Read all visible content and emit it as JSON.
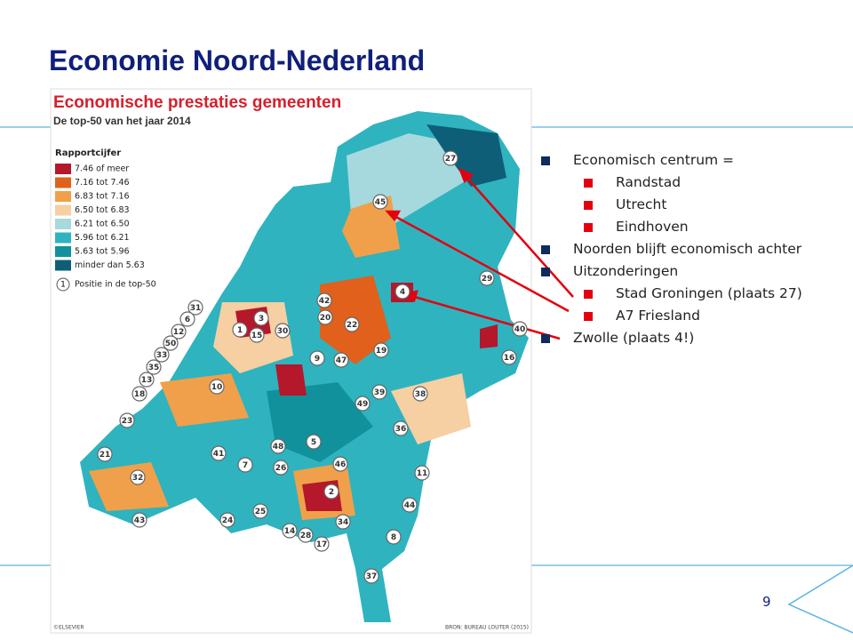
{
  "slide": {
    "title": "Economie Noord-Nederland",
    "bullets": [
      {
        "text": "Economisch centrum =",
        "level": 1
      },
      {
        "text": "Randstad",
        "level": 2
      },
      {
        "text": "Utrecht",
        "level": 2
      },
      {
        "text": "Eindhoven",
        "level": 2
      },
      {
        "text": "Noorden blijft economisch achter",
        "level": 1
      },
      {
        "text": "Uitzonderingen",
        "level": 1
      },
      {
        "text": "Stad Groningen (plaats 27)",
        "level": 2
      },
      {
        "text": "A7 Friesland",
        "level": 2
      },
      {
        "text": "Zwolle (plaats 4!)",
        "level": 1
      }
    ],
    "page_number": "9"
  },
  "map": {
    "title": "Economische prestaties gemeenten",
    "subtitle": "De top-50 van het jaar 2014",
    "legend_title": "Rapportcijfer",
    "legend": [
      {
        "label": "7.46 of meer",
        "color": "#b5172b"
      },
      {
        "label": "7.16 tot 7.46",
        "color": "#e0601c"
      },
      {
        "label": "6.83 tot 7.16",
        "color": "#f0a04a"
      },
      {
        "label": "6.50 tot 6.83",
        "color": "#f6cfa3"
      },
      {
        "label": "6.21 tot 6.50",
        "color": "#a6d9dd"
      },
      {
        "label": "5.96 tot 6.21",
        "color": "#2fb3bf"
      },
      {
        "label": "5.63 tot 5.96",
        "color": "#11919b"
      },
      {
        "label": "minder dan 5.63",
        "color": "#0e5e78"
      }
    ],
    "position_label": "Positie in de top-50",
    "position_symbol": "1",
    "ranks": [
      "27",
      "45",
      "4",
      "29",
      "42",
      "20",
      "22",
      "3",
      "1",
      "15",
      "30",
      "31",
      "6",
      "12",
      "50",
      "33",
      "35",
      "13",
      "18",
      "9",
      "47",
      "19",
      "10",
      "39",
      "49",
      "38",
      "40",
      "16",
      "23",
      "36",
      "48",
      "5",
      "41",
      "21",
      "7",
      "26",
      "46",
      "32",
      "11",
      "2",
      "44",
      "25",
      "24",
      "43",
      "34",
      "14",
      "28",
      "17",
      "8",
      "37"
    ],
    "credit": "©ELSEVIER",
    "source": "BRON: BUREAU LOUTER (2015)"
  }
}
